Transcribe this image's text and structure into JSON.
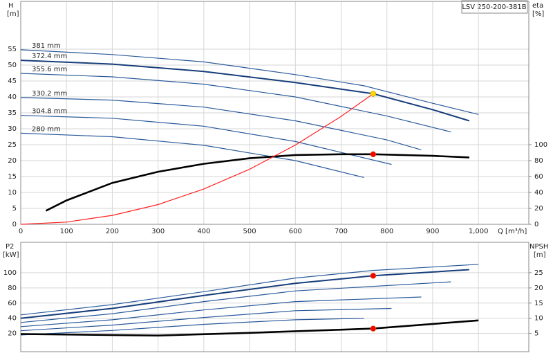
{
  "chart_data": [
    {
      "type": "line",
      "title": "LSV 250-200-381B",
      "y_label": "H",
      "y_unit": "[m]",
      "y2_label": "eta",
      "y2_unit": "[%]",
      "x_label": "Q [m³/h]",
      "xlim": [
        0,
        1110
      ],
      "ylim": [
        0,
        70
      ],
      "y2lim": [
        0,
        280
      ],
      "xticks": [
        0,
        100,
        200,
        300,
        400,
        500,
        600,
        700,
        800,
        900,
        {
          "value": 1000,
          "label": "1,000"
        }
      ],
      "yticks": [
        0,
        5,
        10,
        15,
        20,
        25,
        30,
        35,
        40,
        45,
        50,
        55
      ],
      "y2ticks": [
        0,
        20,
        40,
        60,
        80,
        100
      ],
      "grid": true,
      "series": [
        {
          "name": "381 mm",
          "color": "#2a5a9a",
          "x": [
            0,
            200,
            400,
            600,
            750,
            900,
            1000
          ],
          "values": [
            54.8,
            53.3,
            51,
            47,
            43.5,
            38,
            34.5
          ]
        },
        {
          "name": "372.4 mm",
          "color": "#163d7a",
          "x": [
            0,
            200,
            400,
            600,
            770,
            900,
            980
          ],
          "values": [
            51.5,
            50.3,
            48,
            44.5,
            41,
            36,
            32.5
          ]
        },
        {
          "name": "355.6 mm",
          "color": "#2a5a9a",
          "x": [
            0,
            200,
            400,
            600,
            800,
            940
          ],
          "values": [
            47.4,
            46.3,
            44,
            40,
            34,
            29
          ]
        },
        {
          "name": "330.2 mm",
          "color": "#2a5a9a",
          "x": [
            0,
            200,
            400,
            600,
            800,
            875
          ],
          "values": [
            39.8,
            39,
            36.8,
            32.5,
            26.5,
            23.4
          ]
        },
        {
          "name": "304.8 mm",
          "color": "#2a5a9a",
          "x": [
            0,
            200,
            400,
            600,
            810
          ],
          "values": [
            34.2,
            33.3,
            30.8,
            26,
            18.8
          ]
        },
        {
          "name": "280 mm",
          "color": "#2a5a9a",
          "x": [
            0,
            200,
            400,
            600,
            750
          ],
          "values": [
            28.6,
            27.5,
            24.8,
            20,
            14.7
          ]
        },
        {
          "color": "#000000",
          "axis": "y2",
          "x": [
            55,
            100,
            200,
            300,
            400,
            500,
            600,
            700,
            770,
            900,
            980
          ],
          "values": [
            17,
            30,
            52,
            66,
            76,
            83,
            87,
            88,
            88,
            86,
            84
          ]
        },
        {
          "color": "#ff2020",
          "x": [
            0,
            100,
            200,
            300,
            400,
            500,
            600,
            700,
            770
          ],
          "values": [
            0,
            0.7,
            2.8,
            6.2,
            11.1,
            17.3,
            24.9,
            33.9,
            41
          ]
        }
      ],
      "points": [
        {
          "x": 770,
          "y": 41,
          "color": "#ffd700"
        },
        {
          "x": 770,
          "y": 88,
          "axis": "y2",
          "color": "#ff0000"
        }
      ]
    },
    {
      "type": "line",
      "y_label": "P2",
      "y_unit": "[kW]",
      "y2_label": "NPSH",
      "y2_unit": "[m]",
      "xlim": [
        0,
        1110
      ],
      "ylim": [
        -4,
        140
      ],
      "y2lim": [
        -1,
        35
      ],
      "yticks": [
        20,
        40,
        60,
        80,
        100
      ],
      "y2ticks": [
        5,
        10,
        15,
        20,
        25
      ],
      "grid": true,
      "series": [
        {
          "color": "#2a5a9a",
          "x": [
            0,
            200,
            400,
            600,
            770,
            1000
          ],
          "values": [
            44.5,
            58,
            75,
            93,
            103,
            111
          ]
        },
        {
          "color": "#163d7a",
          "x": [
            0,
            200,
            400,
            600,
            770,
            980
          ],
          "values": [
            40,
            53,
            70,
            86,
            96,
            104
          ]
        },
        {
          "color": "#2a5a9a",
          "x": [
            0,
            200,
            400,
            600,
            940
          ],
          "values": [
            34.5,
            46,
            62,
            76,
            88
          ]
        },
        {
          "color": "#2a5a9a",
          "x": [
            0,
            200,
            400,
            600,
            875
          ],
          "values": [
            29,
            38,
            51,
            62,
            68
          ]
        },
        {
          "color": "#2a5a9a",
          "x": [
            0,
            200,
            400,
            600,
            810
          ],
          "values": [
            23.6,
            31,
            41,
            50,
            53
          ]
        },
        {
          "color": "#2a5a9a",
          "x": [
            0,
            200,
            400,
            600,
            750
          ],
          "values": [
            18,
            24,
            32,
            38,
            40
          ]
        },
        {
          "color": "#000000",
          "axis": "y2",
          "x": [
            0,
            300,
            500,
            770,
            1000
          ],
          "values": [
            4.8,
            4.3,
            5.2,
            6.6,
            9.3
          ]
        }
      ],
      "points": [
        {
          "x": 770,
          "y": 96,
          "color": "#ff0000"
        },
        {
          "x": 770,
          "y": 6.6,
          "axis": "y2",
          "color": "#ff0000"
        }
      ]
    }
  ]
}
